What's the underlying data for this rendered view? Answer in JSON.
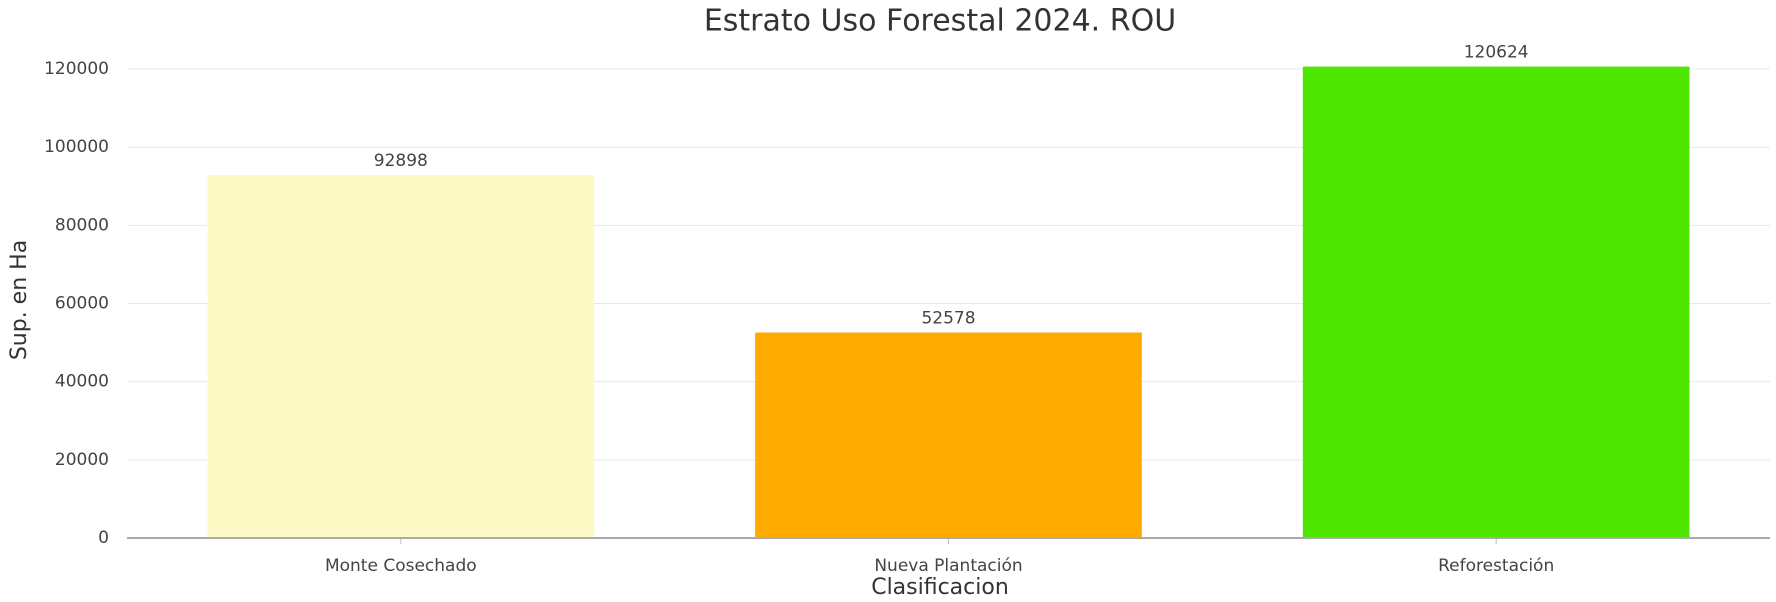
{
  "chart_data": {
    "type": "bar",
    "title": "Estrato Uso Forestal 2024. ROU",
    "x_label": "Clasificacion",
    "y_label": "Sup. en Ha",
    "categories": [
      "Monte Cosechado",
      "Nueva Plantación",
      "Reforestación"
    ],
    "values": [
      92898,
      52578,
      120624
    ],
    "colors": [
      "#fcf9c4",
      "#ffaa00",
      "#4de600"
    ],
    "ylim": [
      0,
      125000
    ],
    "yticks": [
      0,
      20000,
      40000,
      60000,
      80000,
      100000,
      120000
    ],
    "grid": true
  }
}
